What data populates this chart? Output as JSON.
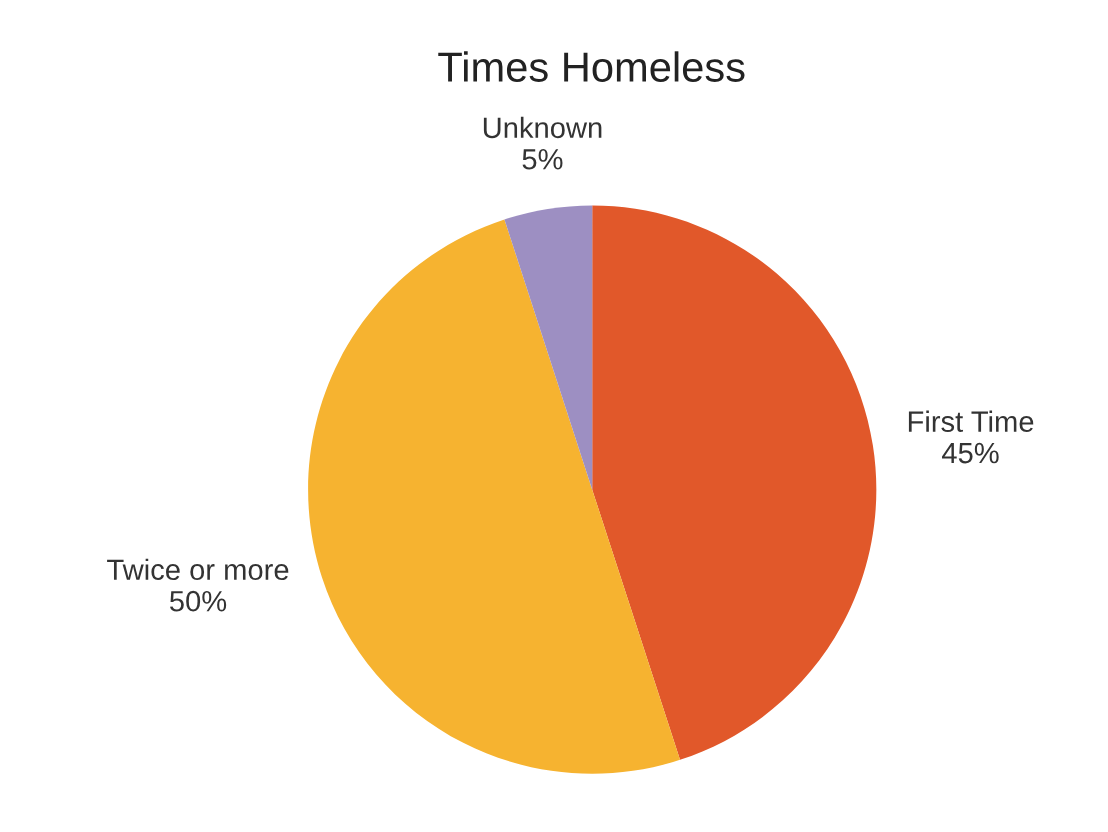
{
  "chart_data": {
    "type": "pie",
    "title": "Times Homeless",
    "categories": [
      "First Time",
      "Twice or more",
      "Unknown"
    ],
    "values": [
      45,
      50,
      5
    ],
    "value_labels": [
      "45%",
      "50%",
      "5%"
    ],
    "colors": [
      "#e1582a",
      "#f6b330",
      "#9d8fc2"
    ],
    "legend": false
  }
}
